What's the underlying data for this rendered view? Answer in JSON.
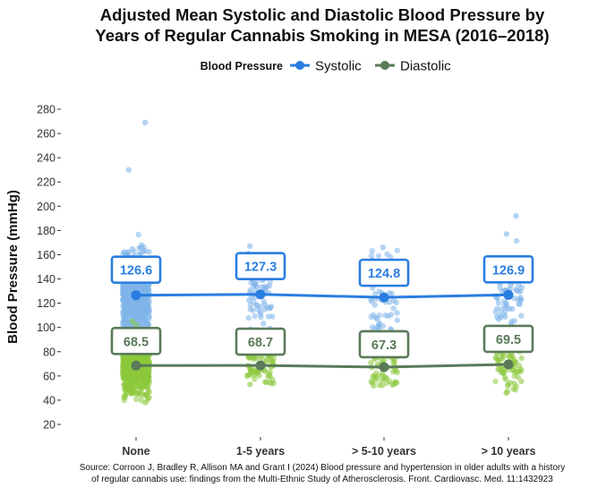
{
  "chart_data": {
    "type": "scatter",
    "title_line1": "Adjusted Mean Systolic and Diastolic Blood Pressure by",
    "title_line2": "Years of Regular Cannabis Smoking in MESA (2016–2018)",
    "ylabel": "Blood Pressure (mmHg)",
    "xlabel": "",
    "categories": [
      "None",
      "1-5 years",
      "> 5-10 years",
      "> 10 years"
    ],
    "ylim": [
      15,
      285
    ],
    "yticks": [
      20,
      40,
      60,
      80,
      100,
      120,
      140,
      160,
      180,
      200,
      220,
      240,
      260,
      280
    ],
    "grid": false,
    "legend": {
      "title": "Blood Pressure",
      "position": "top"
    },
    "series": [
      {
        "name": "Systolic",
        "color": "#2a7de1",
        "point_color": "#7fb5ea",
        "values": [
          126.6,
          127.3,
          124.8,
          126.9
        ],
        "labels": [
          "126.6",
          "127.3",
          "124.8",
          "126.9"
        ],
        "spread": [
          {
            "min": 95,
            "max": 230,
            "outliers": [
              269
            ],
            "count": 700
          },
          {
            "min": 95,
            "max": 167,
            "outliers": [],
            "count": 70
          },
          {
            "min": 95,
            "max": 166,
            "outliers": [],
            "count": 55
          },
          {
            "min": 95,
            "max": 177,
            "outliers": [
              192
            ],
            "count": 75
          }
        ]
      },
      {
        "name": "Diastolic",
        "color": "#5a7a5a",
        "point_color": "#8cc83c",
        "values": [
          68.5,
          68.7,
          67.3,
          69.5
        ],
        "labels": [
          "68.5",
          "68.7",
          "67.3",
          "69.5"
        ],
        "spread": [
          {
            "min": 38,
            "max": 105,
            "outliers": [],
            "count": 700
          },
          {
            "min": 53,
            "max": 92,
            "outliers": [],
            "count": 70
          },
          {
            "min": 52,
            "max": 90,
            "outliers": [],
            "count": 55
          },
          {
            "min": 46,
            "max": 97,
            "outliers": [],
            "count": 75
          }
        ]
      }
    ],
    "source_line1": "Source: Corroon J, Bradley R, Allison MA and Grant I (2024) Blood pressure and hypertension in older adults with a history",
    "source_line2": "of regular cannabis use: findings from the Multi-Ethnic Study of Atherosclerosis. Front. Cardiovasc. Med. 11:1432923"
  }
}
